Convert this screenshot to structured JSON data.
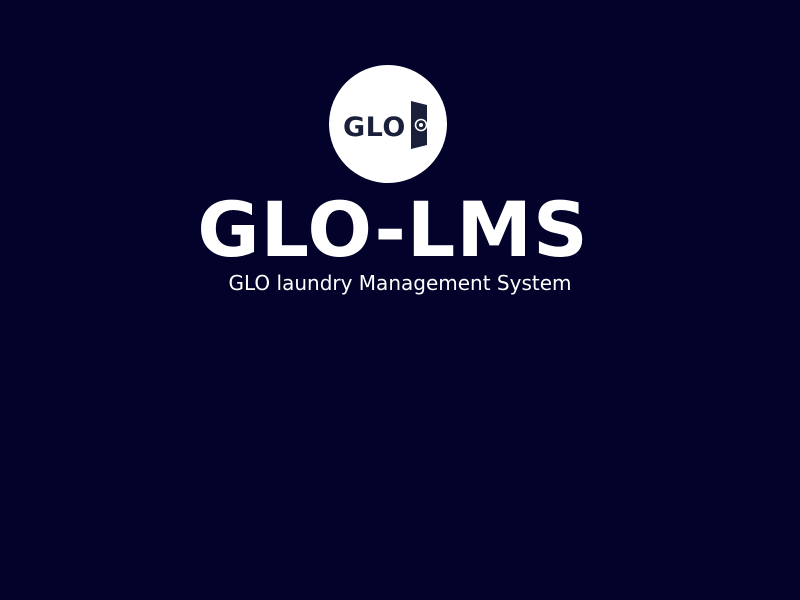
{
  "theme": {
    "background": "#02022a",
    "text_color": "#ffffff",
    "logo_background": "#ffffff",
    "logo_ink": "#1a1f3a"
  },
  "logo": {
    "text": "GLO",
    "icon": "washing-machine-icon"
  },
  "app": {
    "title": "GLO-LMS",
    "subtitle": "GLO laundry Management System"
  }
}
